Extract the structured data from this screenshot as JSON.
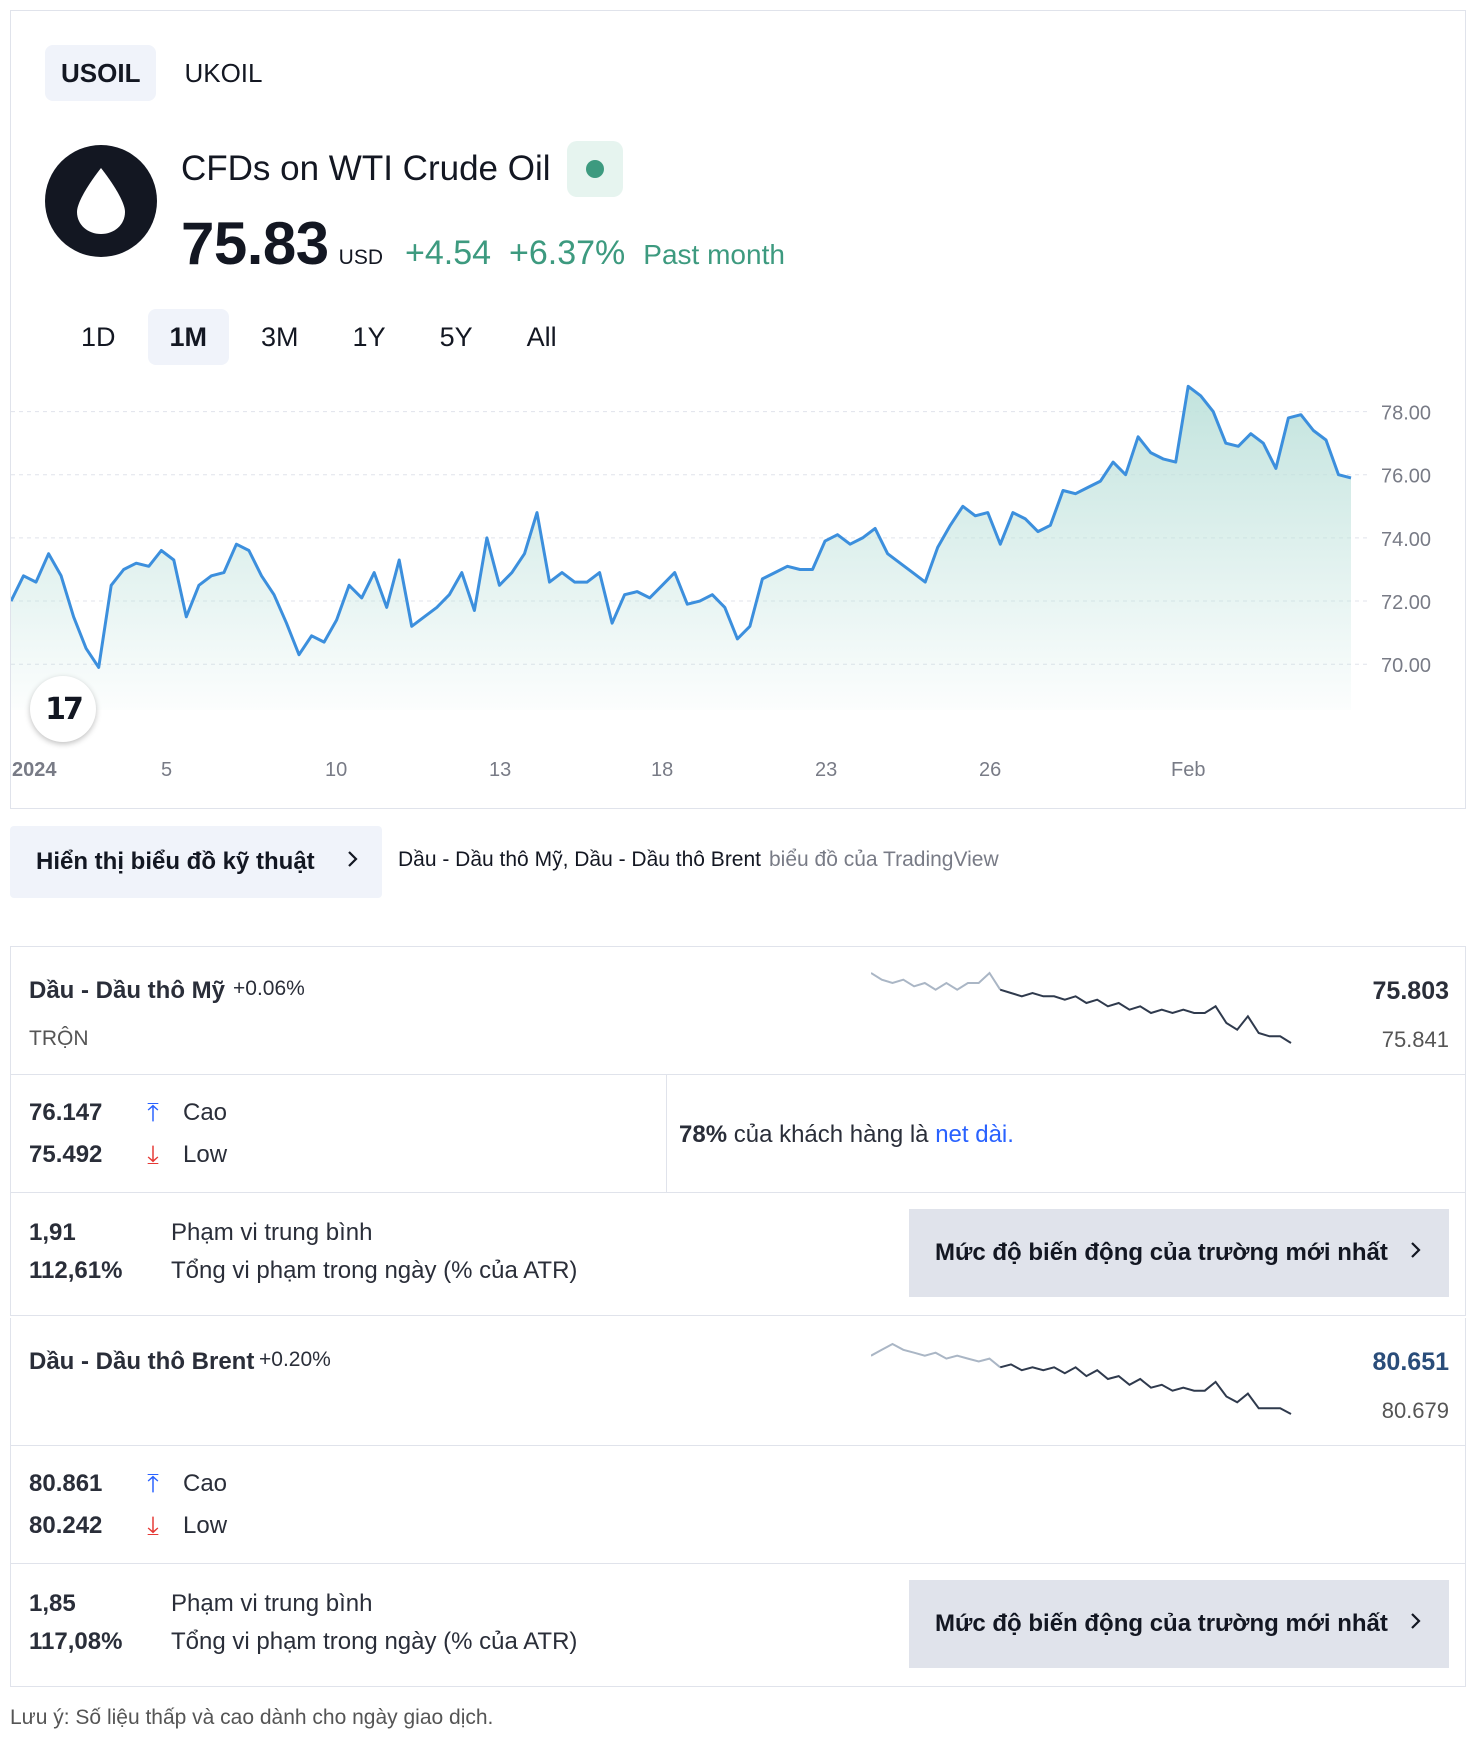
{
  "symbol_tabs": [
    {
      "label": "USOIL",
      "active": true
    },
    {
      "label": "UKOIL",
      "active": false
    }
  ],
  "instrument": {
    "logo_icon": "oil-drop-icon",
    "title": "CFDs on WTI Crude Oil",
    "status": "market-open",
    "price": "75.83",
    "currency": "USD",
    "change": "+4.54",
    "change_pct": "+6.37%",
    "period": "Past month"
  },
  "range_tabs": [
    {
      "label": "1D",
      "active": false
    },
    {
      "label": "1M",
      "active": true
    },
    {
      "label": "3M",
      "active": false
    },
    {
      "label": "1Y",
      "active": false
    },
    {
      "label": "5Y",
      "active": false
    },
    {
      "label": "All",
      "active": false
    }
  ],
  "colors": {
    "line": "#3c8fdd",
    "positive": "#3d9a7f",
    "area_top": "#bfe2dc",
    "sparkline_dark": "#2f3a4d",
    "sparkline_light": "#aab6c5"
  },
  "chart_data": {
    "type": "area",
    "x_ticks": [
      "2024",
      "5",
      "10",
      "13",
      "18",
      "23",
      "26",
      "Feb"
    ],
    "y_ticks": [
      "78.00",
      "76.00",
      "74.00",
      "72.00",
      "70.00"
    ],
    "ylim": [
      69.5,
      79.0
    ],
    "grid": true,
    "badge": "tradingview-logo-icon",
    "series": [
      {
        "values": [
          72.0,
          72.8,
          72.6,
          73.5,
          72.8,
          71.5,
          70.5,
          69.9,
          72.5,
          73.0,
          73.2,
          73.1,
          73.6,
          73.3,
          71.5,
          72.5,
          72.8,
          72.9,
          73.8,
          73.6,
          72.8,
          72.2,
          71.3,
          70.3,
          70.9,
          70.7,
          71.4,
          72.5,
          72.1,
          72.9,
          71.8,
          73.3,
          71.2,
          71.5,
          71.8,
          72.2,
          72.9,
          71.7,
          74.0,
          72.5,
          72.9,
          73.5,
          74.8,
          72.6,
          72.9,
          72.6,
          72.6,
          72.9,
          71.3,
          72.2,
          72.3,
          72.1,
          72.5,
          72.9,
          71.9,
          72.0,
          72.2,
          71.8,
          70.8,
          71.2,
          72.7,
          72.9,
          73.1,
          73.0,
          73.0,
          73.9,
          74.1,
          73.8,
          74.0,
          74.3,
          73.5,
          73.2,
          72.9,
          72.6,
          73.7,
          74.4,
          75.0,
          74.7,
          74.8,
          73.8,
          74.8,
          74.6,
          74.2,
          74.4,
          75.5,
          75.4,
          75.6,
          75.8,
          76.4,
          76.0,
          77.2,
          76.7,
          76.5,
          76.4,
          78.8,
          78.5,
          78.0,
          77.0,
          76.9,
          77.3,
          77.0,
          76.2,
          77.8,
          77.9,
          77.4,
          77.1,
          76.0,
          75.9
        ]
      }
    ]
  },
  "technical_button": {
    "label": "Hiển thị biểu đồ kỹ thuật",
    "icon": "chevron-right-icon"
  },
  "attribution": {
    "text": "Dầu - Dầu thô Mỹ, Dầu - Dầu thô Brent",
    "link": "biểu đồ của TradingView"
  },
  "markets": [
    {
      "name": "Dầu - Dầu thô Mỹ",
      "change": "+0.06%",
      "type": "TRỘN",
      "price": "75.803",
      "price2": "75.841",
      "sparkline": [
        75.95,
        75.93,
        75.92,
        75.93,
        75.91,
        75.92,
        75.9,
        75.92,
        75.9,
        75.92,
        75.92,
        75.95,
        75.9,
        75.89,
        75.88,
        75.89,
        75.88,
        75.88,
        75.87,
        75.88,
        75.86,
        75.87,
        75.85,
        75.86,
        75.84,
        75.85,
        75.83,
        75.84,
        75.83,
        75.84,
        75.83,
        75.83,
        75.85,
        75.8,
        75.78,
        75.82,
        75.77,
        75.76,
        75.76,
        75.74
      ],
      "high": "76.147",
      "high_label": "Cao",
      "low": "75.492",
      "low_label": "Low",
      "sentiment": {
        "percent": "78%",
        "text": "của khách hàng là",
        "link": "net dài."
      },
      "avg_range": "1,91",
      "avg_range_label": "Phạm vi trung bình",
      "atr": "112,61%",
      "atr_label": "Tổng vi phạm trong ngày (% của ATR)",
      "volatility_button": "Mức độ biến động của trường mới nhất"
    },
    {
      "name": "Dầu - Dầu thô Brent",
      "change": "+0.20%",
      "type": "",
      "price": "80.651",
      "price2": "80.679",
      "sparkline": [
        80.78,
        80.8,
        80.82,
        80.8,
        80.79,
        80.78,
        80.79,
        80.77,
        80.78,
        80.77,
        80.76,
        80.77,
        80.74,
        80.75,
        80.73,
        80.74,
        80.73,
        80.74,
        80.72,
        80.74,
        80.71,
        80.73,
        80.7,
        80.71,
        80.68,
        80.7,
        80.67,
        80.68,
        80.66,
        80.67,
        80.66,
        80.66,
        80.69,
        80.64,
        80.62,
        80.65,
        80.6,
        80.6,
        80.6,
        80.58
      ],
      "high": "80.861",
      "high_label": "Cao",
      "low": "80.242",
      "low_label": "Low",
      "avg_range": "1,85",
      "avg_range_label": "Phạm vi trung bình",
      "atr": "117,08%",
      "atr_label": "Tổng vi phạm trong ngày (% của ATR)",
      "volatility_button": "Mức độ biến động của trường mới nhất"
    }
  ],
  "footnote": "Lưu ý: Số liệu thấp và cao dành cho ngày giao dịch."
}
